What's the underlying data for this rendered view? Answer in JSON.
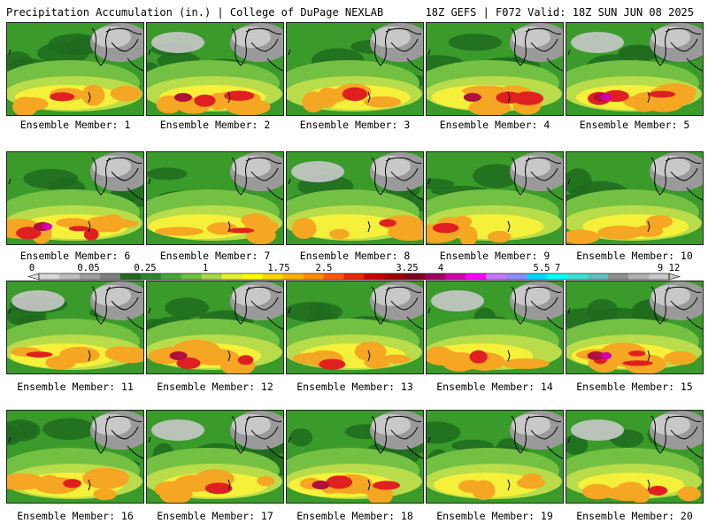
{
  "header": {
    "left": "Precipitation Accumulation (in.) | College of DuPage NEXLAB",
    "right": "18Z GEFS | F072 Valid: 18Z SUN JUN 08 2025"
  },
  "caption_prefix": "Ensemble Member:",
  "members": [
    {
      "label": "Ensemble Member: 1",
      "intensity": 3
    },
    {
      "label": "Ensemble Member: 2",
      "intensity": 4
    },
    {
      "label": "Ensemble Member: 3",
      "intensity": 3
    },
    {
      "label": "Ensemble Member: 4",
      "intensity": 4
    },
    {
      "label": "Ensemble Member: 5",
      "intensity": 5
    },
    {
      "label": "Ensemble Member: 6",
      "intensity": 5
    },
    {
      "label": "Ensemble Member: 7",
      "intensity": 3
    },
    {
      "label": "Ensemble Member: 8",
      "intensity": 3
    },
    {
      "label": "Ensemble Member: 9",
      "intensity": 3
    },
    {
      "label": "Ensemble Member: 10",
      "intensity": 2
    },
    {
      "label": "Ensemble Member: 11",
      "intensity": 3
    },
    {
      "label": "Ensemble Member: 12",
      "intensity": 4
    },
    {
      "label": "Ensemble Member: 13",
      "intensity": 3
    },
    {
      "label": "Ensemble Member: 14",
      "intensity": 3
    },
    {
      "label": "Ensemble Member: 15",
      "intensity": 5
    },
    {
      "label": "Ensemble Member: 16",
      "intensity": 3
    },
    {
      "label": "Ensemble Member: 17",
      "intensity": 3
    },
    {
      "label": "Ensemble Member: 18",
      "intensity": 4
    },
    {
      "label": "Ensemble Member: 19",
      "intensity": 2
    },
    {
      "label": "Ensemble Member: 20",
      "intensity": 3
    }
  ],
  "colorbar": {
    "upper_labels": [
      "0",
      "0.25",
      "1.75",
      "3.25",
      "5.5",
      "9"
    ],
    "lower_labels": [
      "0.05",
      "1",
      "2.5",
      "4",
      "7",
      "12"
    ],
    "colors": [
      "#d8d8d8",
      "#bdbdbd",
      "#9e9e9e",
      "#7f7f7f",
      "#1f6b1f",
      "#2d862d",
      "#46a838",
      "#6cc23c",
      "#a6d84a",
      "#e6f032",
      "#ffff00",
      "#ffd700",
      "#ffb000",
      "#ff8c00",
      "#ff5a00",
      "#e82800",
      "#c80000",
      "#a00000",
      "#800020",
      "#a00060",
      "#d000b0",
      "#ff00ff",
      "#c878ff",
      "#8c8cff",
      "#00d8ff",
      "#00ffff",
      "#40e0d0",
      "#60c0c0",
      "#909090",
      "#b0b0b0",
      "#c8c8c8"
    ]
  },
  "map_colors": {
    "dark_green": "#1f6b1f",
    "green": "#3a9a2a",
    "light_green": "#74c043",
    "yellow_green": "#b8dc4a",
    "yellow": "#f5f03a",
    "orange": "#f5a623",
    "red": "#e02020",
    "crimson": "#b0103a",
    "magenta": "#d000b0",
    "gray": "#9a9a9a",
    "light_gray": "#c8c8c8"
  }
}
